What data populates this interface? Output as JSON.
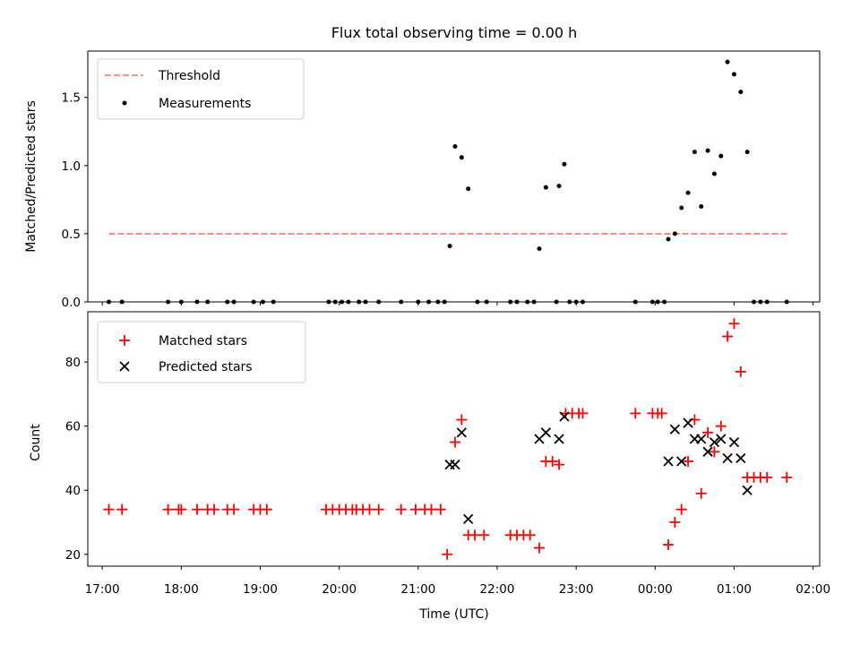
{
  "title": "Flux total observing time = 0.00 h",
  "chart_data": [
    {
      "type": "scatter",
      "ylabel": "Matched/Predicted stars",
      "xlim": [
        "16:49",
        "02:05"
      ],
      "ylim": [
        0,
        1.84
      ],
      "yticks": [
        "0.0",
        "0.5",
        "1.0",
        "1.5"
      ],
      "threshold": {
        "name": "Threshold",
        "value": 0.5,
        "color": "#ff7f7f",
        "x": [
          "17:05",
          "01:40"
        ]
      },
      "series": [
        {
          "name": "Measurements",
          "color": "#000000",
          "points": [
            [
              "17:05",
              0
            ],
            [
              "17:15",
              0
            ],
            [
              "17:50",
              0
            ],
            [
              "18:00",
              0
            ],
            [
              "18:12",
              0
            ],
            [
              "18:20",
              0
            ],
            [
              "18:35",
              0
            ],
            [
              "18:40",
              0
            ],
            [
              "18:55",
              0
            ],
            [
              "19:02",
              0
            ],
            [
              "19:10",
              0
            ],
            [
              "19:52",
              0
            ],
            [
              "19:57",
              0
            ],
            [
              "20:02",
              0
            ],
            [
              "20:07",
              0
            ],
            [
              "20:15",
              0
            ],
            [
              "20:20",
              0
            ],
            [
              "20:30",
              0
            ],
            [
              "20:47",
              0
            ],
            [
              "21:00",
              0
            ],
            [
              "21:08",
              0
            ],
            [
              "21:15",
              0
            ],
            [
              "21:20",
              0
            ],
            [
              "21:24",
              0.41
            ],
            [
              "21:28",
              1.14
            ],
            [
              "21:33",
              1.06
            ],
            [
              "21:38",
              0.83
            ],
            [
              "21:45",
              0
            ],
            [
              "21:52",
              0
            ],
            [
              "22:10",
              0
            ],
            [
              "22:15",
              0
            ],
            [
              "22:23",
              0
            ],
            [
              "22:28",
              0
            ],
            [
              "22:32",
              0.39
            ],
            [
              "22:37",
              0.84
            ],
            [
              "22:45",
              0
            ],
            [
              "22:47",
              0.85
            ],
            [
              "22:51",
              1.01
            ],
            [
              "22:55",
              0
            ],
            [
              "23:00",
              0
            ],
            [
              "23:05",
              0
            ],
            [
              "23:45",
              0
            ],
            [
              "23:58",
              0
            ],
            [
              "00:02",
              0
            ],
            [
              "00:07",
              0
            ],
            [
              "00:10",
              0.46
            ],
            [
              "00:15",
              0.5
            ],
            [
              "00:20",
              0.69
            ],
            [
              "00:25",
              0.8
            ],
            [
              "00:30",
              1.1
            ],
            [
              "00:35",
              0.7
            ],
            [
              "00:40",
              1.11
            ],
            [
              "00:45",
              0.94
            ],
            [
              "00:50",
              1.07
            ],
            [
              "00:55",
              1.76
            ],
            [
              "01:00",
              1.67
            ],
            [
              "01:05",
              1.54
            ],
            [
              "01:10",
              1.1
            ],
            [
              "01:15",
              0
            ],
            [
              "01:20",
              0
            ],
            [
              "01:25",
              0
            ],
            [
              "01:40",
              0
            ]
          ]
        }
      ],
      "legend": {
        "position": "top-left",
        "entries": [
          "Threshold",
          "Measurements"
        ]
      }
    },
    {
      "type": "scatter",
      "ylabel": "Count",
      "xlabel": "Time (UTC)",
      "xlim": [
        "16:49",
        "02:05"
      ],
      "ylim": [
        16.3,
        95.7
      ],
      "yticks": [
        "20",
        "40",
        "60",
        "80"
      ],
      "xticks": [
        "17:00",
        "18:00",
        "19:00",
        "20:00",
        "21:00",
        "22:00",
        "23:00",
        "00:00",
        "01:00",
        "02:00"
      ],
      "series": [
        {
          "name": "Matched stars",
          "marker": "+",
          "color": "#ff0000",
          "points": [
            [
              "17:05",
              34
            ],
            [
              "17:15",
              34
            ],
            [
              "17:50",
              34
            ],
            [
              "17:58",
              34
            ],
            [
              "18:00",
              34
            ],
            [
              "18:12",
              34
            ],
            [
              "18:20",
              34
            ],
            [
              "18:25",
              34
            ],
            [
              "18:35",
              34
            ],
            [
              "18:40",
              34
            ],
            [
              "18:55",
              34
            ],
            [
              "19:00",
              34
            ],
            [
              "19:05",
              34
            ],
            [
              "19:50",
              34
            ],
            [
              "19:55",
              34
            ],
            [
              "20:00",
              34
            ],
            [
              "20:05",
              34
            ],
            [
              "20:10",
              34
            ],
            [
              "20:13",
              34
            ],
            [
              "20:18",
              34
            ],
            [
              "20:23",
              34
            ],
            [
              "20:30",
              34
            ],
            [
              "20:47",
              34
            ],
            [
              "20:58",
              34
            ],
            [
              "21:05",
              34
            ],
            [
              "21:10",
              34
            ],
            [
              "21:17",
              34
            ],
            [
              "21:22",
              20
            ],
            [
              "21:28",
              55
            ],
            [
              "21:33",
              62
            ],
            [
              "21:38",
              26
            ],
            [
              "21:43",
              26
            ],
            [
              "21:50",
              26
            ],
            [
              "22:10",
              26
            ],
            [
              "22:15",
              26
            ],
            [
              "22:20",
              26
            ],
            [
              "22:25",
              26
            ],
            [
              "22:32",
              22
            ],
            [
              "22:37",
              49
            ],
            [
              "22:42",
              49
            ],
            [
              "22:47",
              48
            ],
            [
              "22:52",
              64
            ],
            [
              "22:57",
              64
            ],
            [
              "23:02",
              64
            ],
            [
              "23:05",
              64
            ],
            [
              "23:45",
              64
            ],
            [
              "23:58",
              64
            ],
            [
              "00:02",
              64
            ],
            [
              "00:05",
              64
            ],
            [
              "00:10",
              23
            ],
            [
              "00:15",
              30
            ],
            [
              "00:20",
              34
            ],
            [
              "00:25",
              49
            ],
            [
              "00:30",
              62
            ],
            [
              "00:35",
              39
            ],
            [
              "00:40",
              58
            ],
            [
              "00:45",
              52
            ],
            [
              "00:50",
              60
            ],
            [
              "00:55",
              88
            ],
            [
              "01:00",
              92
            ],
            [
              "01:05",
              77
            ],
            [
              "01:10",
              44
            ],
            [
              "01:15",
              44
            ],
            [
              "01:20",
              44
            ],
            [
              "01:25",
              44
            ],
            [
              "01:40",
              44
            ]
          ]
        },
        {
          "name": "Predicted stars",
          "marker": "x",
          "color": "#000000",
          "points": [
            [
              "21:24",
              48
            ],
            [
              "21:28",
              48
            ],
            [
              "21:33",
              58
            ],
            [
              "21:38",
              31
            ],
            [
              "22:32",
              56
            ],
            [
              "22:37",
              58
            ],
            [
              "22:47",
              56
            ],
            [
              "22:51",
              63
            ],
            [
              "00:10",
              49
            ],
            [
              "00:15",
              59
            ],
            [
              "00:20",
              49
            ],
            [
              "00:25",
              61
            ],
            [
              "00:30",
              56
            ],
            [
              "00:35",
              56
            ],
            [
              "00:40",
              52
            ],
            [
              "00:45",
              55
            ],
            [
              "00:50",
              56
            ],
            [
              "00:55",
              50
            ],
            [
              "01:00",
              55
            ],
            [
              "01:05",
              50
            ],
            [
              "01:10",
              40
            ]
          ]
        }
      ],
      "legend": {
        "position": "top-left",
        "entries": [
          "Matched stars",
          "Predicted stars"
        ]
      }
    }
  ]
}
